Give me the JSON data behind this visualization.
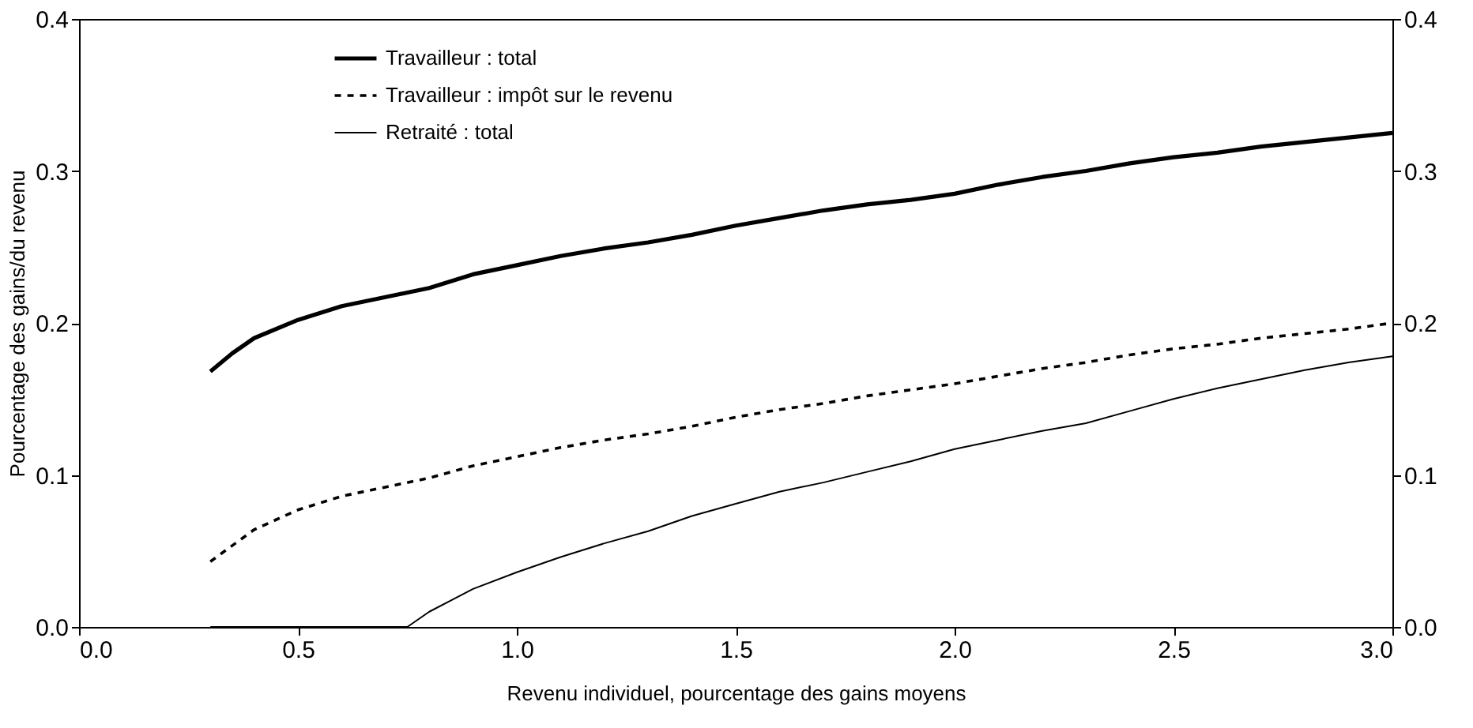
{
  "chart_data": {
    "type": "line",
    "xlabel": "Revenu individuel, pourcentage des gains moyens",
    "ylabel": "Pourcentage des gains/du revenu",
    "xlim": [
      0.0,
      3.0
    ],
    "xticks": [
      {
        "value": 0,
        "label": "0.0"
      },
      {
        "value": 0.5,
        "label": "0.5"
      },
      {
        "value": 1,
        "label": "1.0"
      },
      {
        "value": 1.5,
        "label": "1.5"
      },
      {
        "value": 2,
        "label": "2.0"
      },
      {
        "value": 2.5,
        "label": "2.5"
      },
      {
        "value": 3,
        "label": "3.0"
      }
    ],
    "ylim": [
      0.0,
      0.4
    ],
    "yticks": [
      {
        "value": 0,
        "label": "0.0"
      },
      0.1,
      0.2,
      0.3,
      0.4
    ],
    "y2lim": [
      0.0,
      0.4
    ],
    "y2ticks": [
      {
        "value": 0,
        "label": "0.0"
      },
      0.1,
      0.2,
      0.3,
      0.4
    ],
    "grid": false,
    "legend": "top left",
    "marker": "none",
    "series": [
      {
        "name": "Travailleur : total",
        "color": "#000000",
        "line_style": "solid",
        "x": [
          0.3,
          0.35,
          0.4,
          0.5,
          0.6,
          0.7,
          0.8,
          0.9,
          1.0,
          1.1,
          1.2,
          1.3,
          1.4,
          1.5,
          1.6,
          1.7,
          1.8,
          1.9,
          2.0,
          2.1,
          2.2,
          2.3,
          2.4,
          2.5,
          2.6,
          2.7,
          2.8,
          2.9,
          3.0
        ],
        "values": [
          0.168,
          0.18,
          0.19,
          0.202,
          0.211,
          0.217,
          0.223,
          0.232,
          0.238,
          0.244,
          0.249,
          0.253,
          0.258,
          0.264,
          0.269,
          0.274,
          0.278,
          0.281,
          0.285,
          0.291,
          0.296,
          0.3,
          0.305,
          0.309,
          0.312,
          0.316,
          0.319,
          0.322,
          0.325
        ]
      },
      {
        "name": "Travailleur : impôt sur le revenu",
        "color": "#000000",
        "line_style": "dashed",
        "x": [
          0.3,
          0.4,
          0.5,
          0.6,
          0.7,
          0.8,
          0.9,
          1.0,
          1.1,
          1.2,
          1.3,
          1.4,
          1.5,
          1.6,
          1.7,
          1.8,
          1.9,
          2.0,
          2.1,
          2.2,
          2.3,
          2.4,
          2.5,
          2.6,
          2.7,
          2.8,
          2.9,
          3.0
        ],
        "values": [
          0.043,
          0.064,
          0.077,
          0.086,
          0.092,
          0.098,
          0.106,
          0.112,
          0.118,
          0.123,
          0.127,
          0.132,
          0.138,
          0.143,
          0.147,
          0.152,
          0.156,
          0.16,
          0.165,
          0.17,
          0.174,
          0.179,
          0.183,
          0.186,
          0.19,
          0.193,
          0.196,
          0.2
        ]
      },
      {
        "name": "Retraité : total",
        "color": "#000000",
        "line_style": "solid",
        "x": [
          0.3,
          0.75,
          0.8,
          0.9,
          1.0,
          1.1,
          1.2,
          1.3,
          1.4,
          1.5,
          1.6,
          1.7,
          1.8,
          1.9,
          2.0,
          2.1,
          2.2,
          2.3,
          2.4,
          2.5,
          2.6,
          2.7,
          2.8,
          2.9,
          3.0
        ],
        "values": [
          0,
          0,
          0.01,
          0.025,
          0.036,
          0.046,
          0.055,
          0.063,
          0.073,
          0.081,
          0.089,
          0.095,
          0.102,
          0.109,
          0.117,
          0.123,
          0.129,
          0.134,
          0.142,
          0.15,
          0.157,
          0.163,
          0.169,
          0.174,
          0.178
        ]
      }
    ]
  }
}
